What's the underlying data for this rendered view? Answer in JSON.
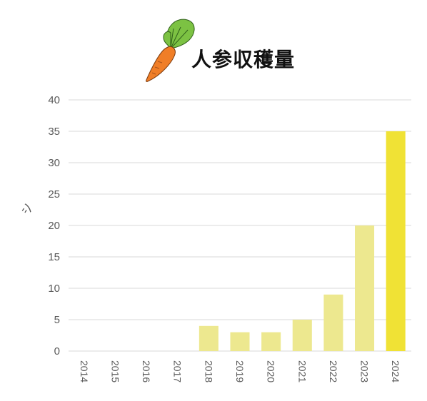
{
  "chart_data": {
    "type": "bar",
    "title": "人参収穫量",
    "ylabel": "シ",
    "xlabel": "",
    "categories": [
      "2014",
      "2015",
      "2016",
      "2017",
      "2018",
      "2019",
      "2020",
      "2021",
      "2022",
      "2023",
      "2024"
    ],
    "values": [
      0,
      0,
      0,
      0,
      4,
      3,
      3,
      5,
      9,
      20,
      35
    ],
    "ylim": [
      0,
      40
    ],
    "yticks": [
      0,
      5,
      10,
      15,
      20,
      25,
      30,
      35,
      40
    ],
    "grid": true,
    "legend": "none",
    "colors": {
      "bar": "#ede88f",
      "bar_highlight": "#f0e235",
      "grid": "#d9d9d9",
      "axis": "#d9d9d9",
      "carrot_body": "#f07e27",
      "carrot_leaf": "#7cc243"
    },
    "icon": "carrot-icon"
  }
}
